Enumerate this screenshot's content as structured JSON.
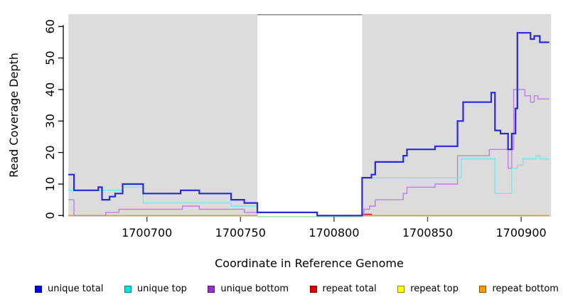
{
  "chart_data": {
    "type": "line",
    "step": true,
    "title": "",
    "xlabel": "Coordinate in Reference Genome",
    "ylabel": "Read Coverage Depth",
    "xlim": [
      1700658,
      1700916
    ],
    "ylim": [
      0,
      62
    ],
    "x_ticks": [
      1700700,
      1700750,
      1700800,
      1700850,
      1700900
    ],
    "y_ticks": [
      0,
      10,
      20,
      30,
      40,
      50,
      60
    ],
    "grid": false,
    "legend_position": "bottom",
    "panel_background": "#dcdcdc",
    "shaded_regions": [
      {
        "start": 1700658,
        "end": 1700759
      },
      {
        "start": 1700815,
        "end": 1700916
      }
    ],
    "gap_region": {
      "start": 1700759,
      "end": 1700815,
      "fill": "#ffffff",
      "top_border_color": "#808080",
      "baseline_color": "#9fdf9f"
    },
    "series": [
      {
        "name": "repeat top",
        "color": "#ffee00",
        "width": 1.2,
        "segments": [
          [
            [
              1700658,
              0
            ],
            [
              1700759,
              0
            ]
          ],
          [
            [
              1700815,
              0
            ],
            [
              1700915,
              0
            ]
          ]
        ]
      },
      {
        "name": "repeat total",
        "color": "#cc1133",
        "width": 1.4,
        "segments": [
          [
            [
              1700658,
              0
            ],
            [
              1700759,
              0
            ]
          ],
          [
            [
              1700815,
              0.4
            ],
            [
              1700820,
              0
            ],
            [
              1700915,
              0
            ]
          ]
        ]
      },
      {
        "name": "repeat bottom",
        "color": "#ff9d00",
        "width": 1.7,
        "segments": [
          [
            [
              1700658,
              0
            ],
            [
              1700759,
              0
            ]
          ],
          [
            [
              1700815,
              0
            ],
            [
              1700915,
              0
            ]
          ]
        ]
      },
      {
        "name": "unique bottom",
        "color": "#c07fe0",
        "width": 1.4,
        "segments": [
          [
            [
              1700658,
              5
            ],
            [
              1700661,
              0
            ],
            [
              1700678,
              1
            ],
            [
              1700685,
              2
            ],
            [
              1700719,
              3
            ],
            [
              1700728,
              2
            ],
            [
              1700752,
              1
            ],
            [
              1700759,
              0
            ]
          ],
          [
            [
              1700815,
              0
            ],
            [
              1700816,
              2
            ],
            [
              1700819,
              3
            ],
            [
              1700822,
              5
            ],
            [
              1700837,
              7
            ],
            [
              1700839,
              9
            ],
            [
              1700854,
              10
            ],
            [
              1700866,
              19
            ],
            [
              1700883,
              21
            ],
            [
              1700893,
              15
            ],
            [
              1700895,
              21
            ],
            [
              1700896,
              40
            ],
            [
              1700902,
              38
            ],
            [
              1700905,
              36
            ],
            [
              1700907,
              38
            ],
            [
              1700909,
              37
            ],
            [
              1700915,
              37
            ]
          ]
        ]
      },
      {
        "name": "unique top",
        "color": "#77e8e8",
        "width": 1.4,
        "segments": [
          [
            [
              1700658,
              8
            ],
            [
              1700687,
              9
            ],
            [
              1700698,
              4
            ],
            [
              1700745,
              3
            ],
            [
              1700759,
              0
            ]
          ],
          [
            [
              1700815,
              0
            ],
            [
              1700815,
              12
            ],
            [
              1700868,
              18
            ],
            [
              1700886,
              7
            ],
            [
              1700895,
              15
            ],
            [
              1700898,
              16
            ],
            [
              1700901,
              18
            ],
            [
              1700908,
              19
            ],
            [
              1700910,
              18
            ],
            [
              1700915,
              18
            ]
          ]
        ]
      },
      {
        "name": "unique total",
        "color": "#2a2ad4",
        "width": 2.2,
        "segments": [
          [
            [
              1700658,
              13
            ],
            [
              1700661,
              8
            ],
            [
              1700674,
              9
            ],
            [
              1700676,
              5
            ],
            [
              1700680,
              6
            ],
            [
              1700683,
              7
            ],
            [
              1700687,
              10
            ],
            [
              1700698,
              7
            ],
            [
              1700718,
              8
            ],
            [
              1700728,
              7
            ],
            [
              1700745,
              5
            ],
            [
              1700752,
              4
            ],
            [
              1700759,
              1
            ],
            [
              1700791,
              0
            ],
            [
              1700815,
              12
            ],
            [
              1700820,
              13
            ],
            [
              1700822,
              17
            ],
            [
              1700837,
              19
            ],
            [
              1700839,
              21
            ],
            [
              1700854,
              22
            ],
            [
              1700866,
              30
            ],
            [
              1700869,
              36
            ],
            [
              1700884,
              39
            ],
            [
              1700886,
              27
            ],
            [
              1700889,
              26
            ],
            [
              1700893,
              21
            ],
            [
              1700895,
              26
            ],
            [
              1700897,
              34
            ],
            [
              1700898,
              58
            ],
            [
              1700905,
              56
            ],
            [
              1700907,
              57
            ],
            [
              1700910,
              55
            ],
            [
              1700915,
              55
            ]
          ]
        ]
      }
    ]
  },
  "legend": {
    "items": [
      {
        "label": "unique total",
        "color": "#0000ee"
      },
      {
        "label": "unique top",
        "color": "#00e5e5"
      },
      {
        "label": "unique bottom",
        "color": "#9932cc"
      },
      {
        "label": "repeat total",
        "color": "#e00000"
      },
      {
        "label": "repeat top",
        "color": "#ffff00"
      },
      {
        "label": "repeat bottom",
        "color": "#ff9900"
      }
    ]
  }
}
